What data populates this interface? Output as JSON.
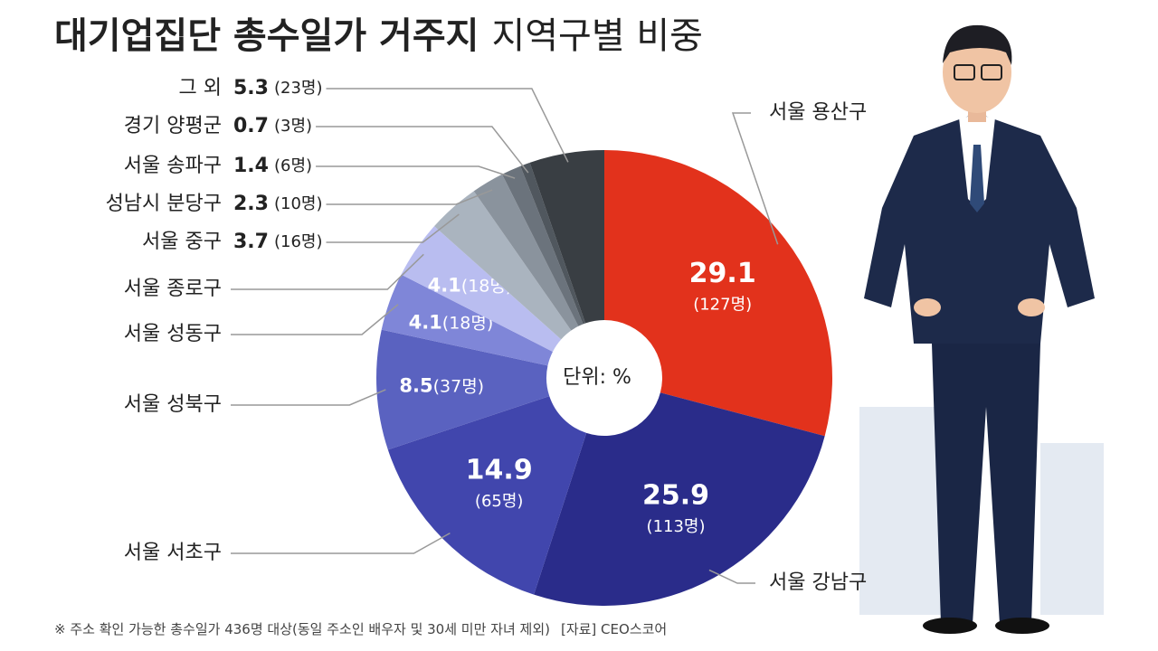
{
  "chart_data": {
    "type": "donut",
    "title": "대기업집단 총수일가 거주지",
    "subtitle": "지역구별 비중",
    "center_label": "단위: %",
    "categories": [
      "서울 용산구",
      "서울 강남구",
      "서울 서초구",
      "서울 성북구",
      "서울 성동구",
      "서울 종로구",
      "서울 중구",
      "성남시 분당구",
      "서울 송파구",
      "경기 양평군",
      "그 외"
    ],
    "values": [
      29.1,
      25.9,
      14.9,
      8.5,
      4.1,
      4.1,
      3.7,
      2.3,
      1.4,
      0.7,
      5.3
    ],
    "counts": [
      127,
      113,
      65,
      37,
      18,
      18,
      16,
      10,
      6,
      3,
      23
    ],
    "count_labels": [
      "(127명)",
      "(113명)",
      "(65명)",
      "(37명)",
      "(18명)",
      "(18명)",
      "(16명)",
      "(10명)",
      "(6명)",
      "(3명)",
      "(23명)"
    ],
    "colors": [
      "#e2321c",
      "#2a2c8a",
      "#4146ad",
      "#5a62c0",
      "#7f86d8",
      "#b9bdf0",
      "#aab4bf",
      "#8a939d",
      "#6b737c",
      "#50575e",
      "#393e43"
    ],
    "note": "※ 주소 확인 가능한 총수일가 436명 대상(동일 주소인 배우자 및 30세 미만 자녀 제외)",
    "source": "[자료] CEO스코어"
  }
}
